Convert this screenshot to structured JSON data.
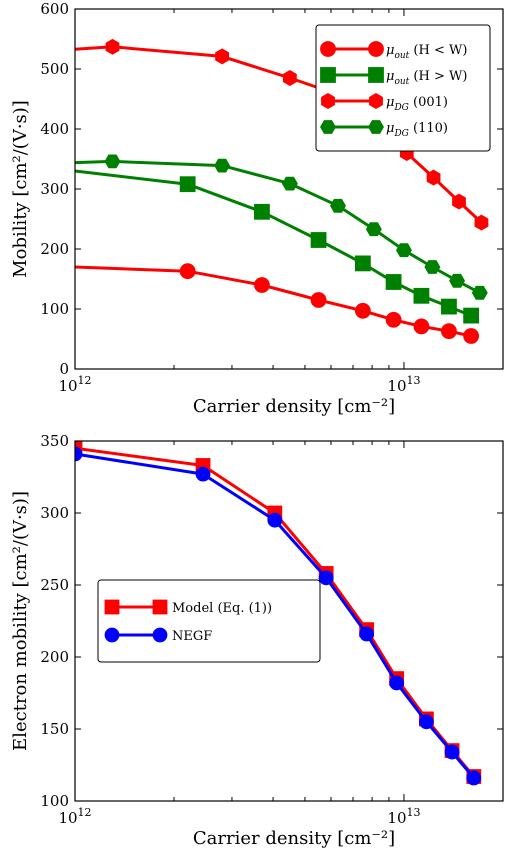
{
  "chart_data": [
    {
      "type": "line",
      "xscale": "log",
      "xlim": [
        1000000000000.0,
        20000000000000.0
      ],
      "ylim": [
        0,
        600
      ],
      "xlabel": "Carrier density [cm⁻²]",
      "ylabel": "Mobility [cm²/(V·s)]",
      "xticks": [
        {
          "value": 1000000000000.0,
          "base": "10",
          "exp": "12"
        },
        {
          "value": 10000000000000.0,
          "base": "10",
          "exp": "13"
        }
      ],
      "yticks": [
        0,
        100,
        200,
        300,
        400,
        500,
        600
      ],
      "legend_position": "top-right",
      "series": [
        {
          "name": "μ_out (H < W)",
          "label_main": "μ",
          "label_sub": "out",
          "label_rest": " (H < W)",
          "color": "#ff0000",
          "marker": "circle",
          "x": [
            1000000000000.0,
            2200000000000.0,
            3700000000000.0,
            5500000000000.0,
            7500000000000.0,
            9300000000000.0,
            11300000000000.0,
            13700000000000.0,
            16000000000000.0
          ],
          "y": [
            170,
            163,
            140,
            115,
            97,
            82,
            71,
            63,
            55
          ],
          "marker_x": [
            2200000000000.0,
            3700000000000.0,
            5500000000000.0,
            7500000000000.0,
            9300000000000.0,
            11300000000000.0,
            13700000000000.0,
            16000000000000.0
          ],
          "marker_y": [
            163,
            140,
            115,
            97,
            82,
            71,
            63,
            55
          ]
        },
        {
          "name": "μ_out (H > W)",
          "label_main": "μ",
          "label_sub": "out",
          "label_rest": " (H > W)",
          "color": "#008000",
          "marker": "square",
          "x": [
            1000000000000.0,
            2200000000000.0,
            3700000000000.0,
            5500000000000.0,
            7500000000000.0,
            9300000000000.0,
            11300000000000.0,
            13700000000000.0,
            16000000000000.0
          ],
          "y": [
            330,
            308,
            262,
            215,
            176,
            145,
            122,
            104,
            89
          ],
          "marker_x": [
            2200000000000.0,
            3700000000000.0,
            5500000000000.0,
            7500000000000.0,
            9300000000000.0,
            11300000000000.0,
            13700000000000.0,
            16000000000000.0
          ],
          "marker_y": [
            308,
            262,
            215,
            176,
            145,
            122,
            104,
            89
          ]
        },
        {
          "name": "μ_DG (001)",
          "label_main": "μ",
          "label_sub": "DG",
          "label_rest": " (001)",
          "color": "#ff0000",
          "marker": "hexagon",
          "x": [
            1000000000000.0,
            1300000000000.0,
            2800000000000.0,
            4500000000000.0,
            6500000000000.0,
            8300000000000.0,
            10200000000000.0,
            12300000000000.0,
            14700000000000.0,
            17200000000000.0
          ],
          "y": [
            533,
            537,
            521,
            485,
            455,
            415,
            360,
            319,
            279,
            244
          ],
          "marker_x": [
            1300000000000.0,
            2800000000000.0,
            4500000000000.0,
            6500000000000.0,
            8300000000000.0,
            10200000000000.0,
            12300000000000.0,
            14700000000000.0,
            17200000000000.0
          ],
          "marker_y": [
            537,
            521,
            485,
            455,
            415,
            360,
            319,
            279,
            244
          ]
        },
        {
          "name": "μ_DG (110)",
          "label_main": "μ",
          "label_sub": "DG",
          "label_rest": " (110)",
          "color": "#008000",
          "marker": "hexagon-flat",
          "x": [
            1000000000000.0,
            1300000000000.0,
            2800000000000.0,
            4500000000000.0,
            6300000000000.0,
            8100000000000.0,
            10000000000000.0,
            12200000000000.0,
            14500000000000.0,
            17000000000000.0
          ],
          "y": [
            344,
            346,
            339,
            309,
            272,
            233,
            198,
            170,
            147,
            127
          ],
          "marker_x": [
            1300000000000.0,
            2800000000000.0,
            4500000000000.0,
            6300000000000.0,
            8100000000000.0,
            10000000000000.0,
            12200000000000.0,
            14500000000000.0,
            17000000000000.0
          ],
          "marker_y": [
            346,
            339,
            309,
            272,
            233,
            198,
            170,
            147,
            127
          ]
        }
      ]
    },
    {
      "type": "line",
      "xscale": "log",
      "xlim": [
        1000000000000.0,
        20000000000000.0
      ],
      "ylim": [
        100,
        350
      ],
      "xlabel": "Carrier density [cm⁻²]",
      "ylabel": "Electron mobility [cm²/(V·s)]",
      "xticks": [
        {
          "value": 1000000000000.0,
          "base": "10",
          "exp": "12"
        },
        {
          "value": 10000000000000.0,
          "base": "10",
          "exp": "13"
        }
      ],
      "yticks": [
        100,
        150,
        200,
        250,
        300,
        350
      ],
      "legend_position": "center-left",
      "series": [
        {
          "name": "Model (Eq. (1))",
          "label_main": "Model (Eq. (1))",
          "label_sub": "",
          "label_rest": "",
          "color": "#ff0000",
          "marker": "square",
          "x": [
            1000000000000.0,
            2450000000000.0,
            4050000000000.0,
            5800000000000.0,
            7700000000000.0,
            9500000000000.0,
            11700000000000.0,
            14000000000000.0,
            16300000000000.0
          ],
          "y": [
            345,
            333,
            300,
            258,
            219,
            185,
            157,
            135,
            117
          ],
          "marker_x": [
            1000000000000.0,
            2450000000000.0,
            4050000000000.0,
            5800000000000.0,
            7700000000000.0,
            9500000000000.0,
            11700000000000.0,
            14000000000000.0,
            16300000000000.0
          ],
          "marker_y": [
            345,
            333,
            300,
            258,
            219,
            185,
            157,
            135,
            117
          ]
        },
        {
          "name": "NEGF",
          "label_main": "NEGF",
          "label_sub": "",
          "label_rest": "",
          "color": "#0000ff",
          "marker": "circle",
          "x": [
            1000000000000.0,
            2450000000000.0,
            4050000000000.0,
            5800000000000.0,
            7700000000000.0,
            9500000000000.0,
            11700000000000.0,
            14000000000000.0,
            16300000000000.0
          ],
          "y": [
            341,
            327,
            295,
            255,
            216,
            182,
            155,
            134,
            116
          ],
          "marker_x": [
            1000000000000.0,
            2450000000000.0,
            4050000000000.0,
            5800000000000.0,
            7700000000000.0,
            9500000000000.0,
            11700000000000.0,
            14000000000000.0,
            16300000000000.0
          ],
          "marker_y": [
            341,
            327,
            295,
            255,
            216,
            182,
            155,
            134,
            116
          ]
        }
      ]
    }
  ]
}
